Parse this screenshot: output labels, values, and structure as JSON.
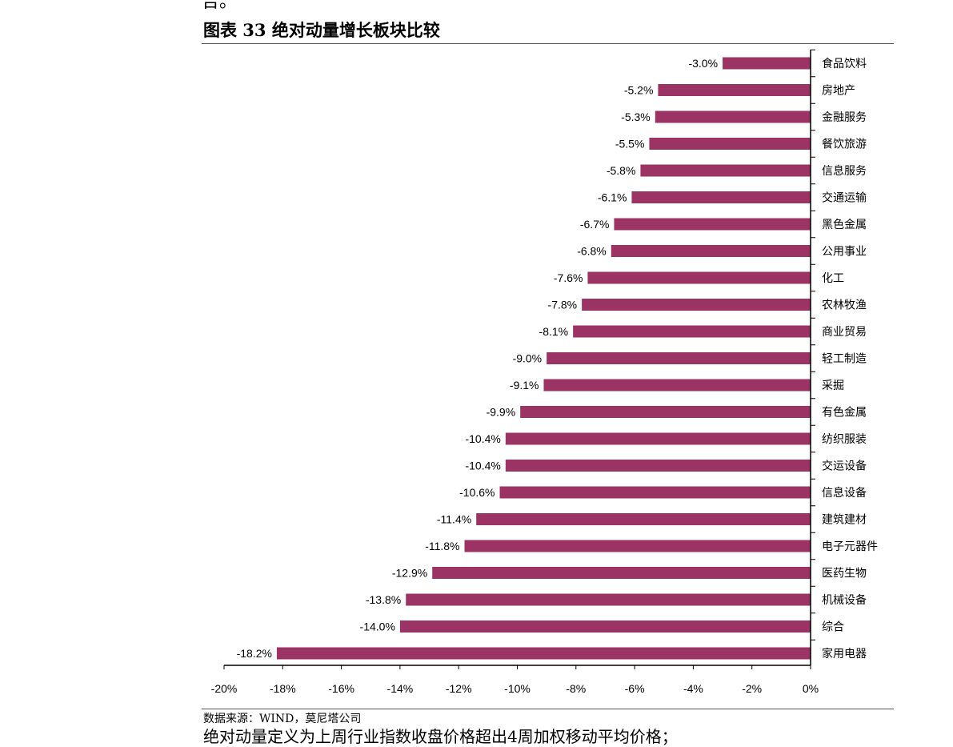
{
  "page": {
    "top_fragment": "告。",
    "figure_title": "图表 33 绝对动量增长板块比较",
    "source": "数据来源：WIND，莫尼塔公司",
    "bottom_fragment": "绝对动量定义为上周行业指数收盘价格超出4周加权移动平均价格；"
  },
  "colors": {
    "bar": "#9b3465",
    "axis": "#000000",
    "rule": "#555555"
  },
  "chart_data": {
    "type": "bar",
    "orientation": "horizontal",
    "title": "",
    "xlabel": "",
    "ylabel": "",
    "categories": [
      "食品饮料",
      "房地产",
      "金融服务",
      "餐饮旅游",
      "信息服务",
      "交通运输",
      "黑色金属",
      "公用事业",
      "化工",
      "农林牧渔",
      "商业贸易",
      "轻工制造",
      "采掘",
      "有色金属",
      "纺织服装",
      "交运设备",
      "信息设备",
      "建筑建材",
      "电子元器件",
      "医药生物",
      "机械设备",
      "综合",
      "家用电器"
    ],
    "values": [
      -3.0,
      -5.2,
      -5.3,
      -5.5,
      -5.8,
      -6.1,
      -6.7,
      -6.8,
      -7.6,
      -7.8,
      -8.1,
      -9.0,
      -9.1,
      -9.9,
      -10.4,
      -10.4,
      -10.6,
      -11.4,
      -11.8,
      -12.9,
      -13.8,
      -14.0,
      -18.2
    ],
    "data_labels": [
      "-3.0%",
      "-5.2%",
      "-5.3%",
      "-5.5%",
      "-5.8%",
      "-6.1%",
      "-6.7%",
      "-6.8%",
      "-7.6%",
      "-7.8%",
      "-8.1%",
      "-9.0%",
      "-9.1%",
      "-9.9%",
      "-10.4%",
      "-10.4%",
      "-10.6%",
      "-11.4%",
      "-11.8%",
      "-12.9%",
      "-13.8%",
      "-14.0%",
      "-18.2%"
    ],
    "x_ticks": [
      -20,
      -18,
      -16,
      -14,
      -12,
      -10,
      -8,
      -6,
      -4,
      -2,
      0
    ],
    "x_tick_labels": [
      "-20%",
      "-18%",
      "-16%",
      "-14%",
      "-12%",
      "-10%",
      "-8%",
      "-6%",
      "-4%",
      "-2%",
      "0%"
    ],
    "xlim": [
      -20,
      0
    ],
    "grid": false,
    "legend": "none",
    "category_axis_position": "right"
  }
}
